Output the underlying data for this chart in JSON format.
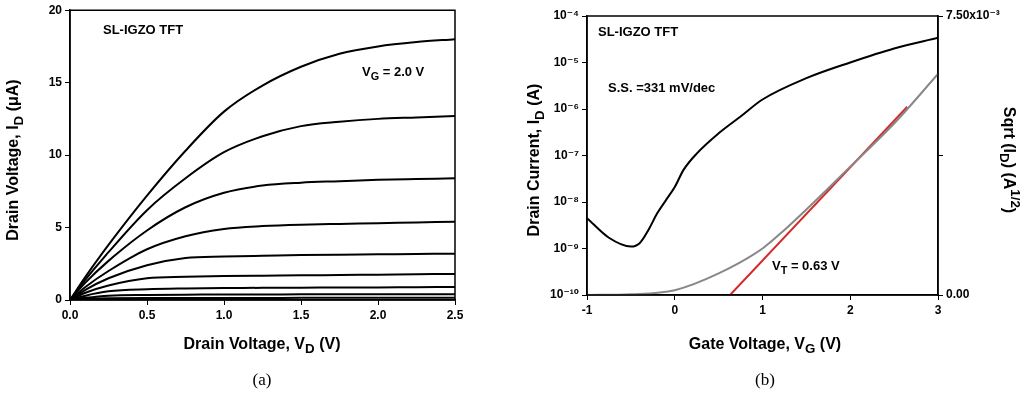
{
  "chart_data": [
    {
      "type": "line",
      "xlabel": "Drain Voltage, V$_{D}$ (V)",
      "ylabel": "Drain Voltage, I$_{D}$ (μA)",
      "marker": "none",
      "annotations": [
        "SL-IGZO TFT",
        "V$_{G}$ = 2.0 V",
        "(a)"
      ],
      "x": [
        0,
        0.1,
        0.25,
        0.5,
        0.75,
        1,
        1.25,
        1.5,
        1.75,
        2,
        2.25,
        2.5
      ],
      "xlim": [
        0,
        2.5
      ],
      "xticks": [
        {
          "value": 0,
          "label": "0.0"
        },
        {
          "value": 0.5,
          "label": "0.5"
        },
        {
          "value": 1,
          "label": "1.0"
        },
        {
          "value": 1.5,
          "label": "1.5"
        },
        {
          "value": 2,
          "label": "2.0"
        },
        {
          "value": 2.5,
          "label": "2.5"
        }
      ],
      "ylim": [
        0,
        20
      ],
      "yticks": [
        0,
        5,
        10,
        15,
        20
      ],
      "series": [
        {
          "color": "#000000",
          "values": [
            0,
            1.6,
            3.8,
            7.2,
            10.3,
            13.0,
            14.8,
            16.1,
            17.0,
            17.5,
            17.8,
            18.0
          ]
        },
        {
          "color": "#000000",
          "values": [
            0,
            1.4,
            3.3,
            6.2,
            8.4,
            10.2,
            11.3,
            12.0,
            12.3,
            12.5,
            12.6,
            12.7
          ]
        },
        {
          "color": "#000000",
          "values": [
            0,
            1.2,
            2.7,
            4.8,
            6.4,
            7.4,
            7.9,
            8.1,
            8.2,
            8.3,
            8.35,
            8.4
          ]
        },
        {
          "color": "#000000",
          "values": [
            0,
            0.9,
            2.0,
            3.5,
            4.4,
            4.9,
            5.1,
            5.2,
            5.25,
            5.3,
            5.35,
            5.4
          ]
        },
        {
          "color": "#000000",
          "values": [
            0,
            0.7,
            1.5,
            2.4,
            2.9,
            3.0,
            3.05,
            3.1,
            3.12,
            3.15,
            3.18,
            3.2
          ]
        },
        {
          "color": "#000000",
          "values": [
            0,
            0.5,
            1.0,
            1.5,
            1.6,
            1.65,
            1.68,
            1.7,
            1.72,
            1.75,
            1.78,
            1.8
          ]
        },
        {
          "color": "#000000",
          "values": [
            0,
            0.3,
            0.6,
            0.75,
            0.8,
            0.82,
            0.84,
            0.85,
            0.86,
            0.87,
            0.88,
            0.9
          ]
        },
        {
          "color": "#000000",
          "values": [
            0,
            0.15,
            0.3,
            0.35,
            0.37,
            0.38,
            0.38,
            0.39,
            0.39,
            0.4,
            0.4,
            0.4
          ]
        },
        {
          "color": "#000000",
          "values": [
            0,
            0.08,
            0.12,
            0.13,
            0.14,
            0.14,
            0.14,
            0.15,
            0.15,
            0.15,
            0.15,
            0.15
          ]
        }
      ]
    },
    {
      "type": "line",
      "xlabel": "Gate Voltage, V$_{G}$ (V)",
      "ylabel": "Drain Current, I$_{D}$ (A)",
      "y2label": "Sqrt (I$_{D}$) (A$^{1/2}$)",
      "marker": "none",
      "log": "y",
      "annotations": [
        "SL-IGZO TFT",
        "S.S. =331 mV/dec",
        "V$_{T}$ = 0.63 V",
        "(b)"
      ],
      "xlim": [
        -1,
        3
      ],
      "xticks": [
        -1,
        0,
        1,
        2,
        3
      ],
      "ylim": [
        1e-10,
        0.0001
      ],
      "yticks": [
        {
          "value": 1e-10,
          "label": "10⁻¹⁰"
        },
        {
          "value": 1e-09,
          "label": "10⁻⁹"
        },
        {
          "value": 1e-08,
          "label": "10⁻⁸"
        },
        {
          "value": 1e-07,
          "label": "10⁻⁷"
        },
        {
          "value": 1e-06,
          "label": "10⁻⁶"
        },
        {
          "value": 1e-05,
          "label": "10⁻⁵"
        },
        {
          "value": 0.0001,
          "label": "10⁻⁴"
        }
      ],
      "y2lim": [
        0,
        0.0075
      ],
      "y2ticks": [
        {
          "value": 0,
          "label": "0.00"
        },
        {
          "value": 0.00375,
          "label": null
        },
        {
          "value": 0.0075,
          "label": "7.50x10⁻³"
        }
      ],
      "series": [
        {
          "color": "#000000",
          "x": [
            -1,
            -0.75,
            -0.5,
            -0.4,
            -0.3,
            -0.2,
            -0.1,
            0,
            0.1,
            0.25,
            0.5,
            0.75,
            1,
            1.5,
            2,
            2.5,
            3
          ],
          "values": [
            4.5e-09,
            1.7e-09,
            1.1e-09,
            1.3e-09,
            2.5e-09,
            5.7e-09,
            1.1e-08,
            2.1e-08,
            4.9e-08,
            1.1e-07,
            3e-07,
            6.9e-07,
            1.6e-06,
            4.6e-06,
            1e-05,
            2e-05,
            3.4e-05
          ]
        },
        {
          "color": "#888888",
          "axis": "y2",
          "x": [
            -1,
            -0.5,
            0,
            0.5,
            1,
            1.25,
            1.5,
            2,
            2.5,
            3
          ],
          "values": [
            0,
            2e-05,
            0.00013,
            0.00058,
            0.00125,
            0.00175,
            0.0023,
            0.00345,
            0.00461,
            0.00594
          ]
        },
        {
          "color": "#d42a2a",
          "axis": "y2",
          "x": [
            0.63,
            2.65
          ],
          "values": [
            0,
            0.00506
          ]
        }
      ]
    }
  ]
}
